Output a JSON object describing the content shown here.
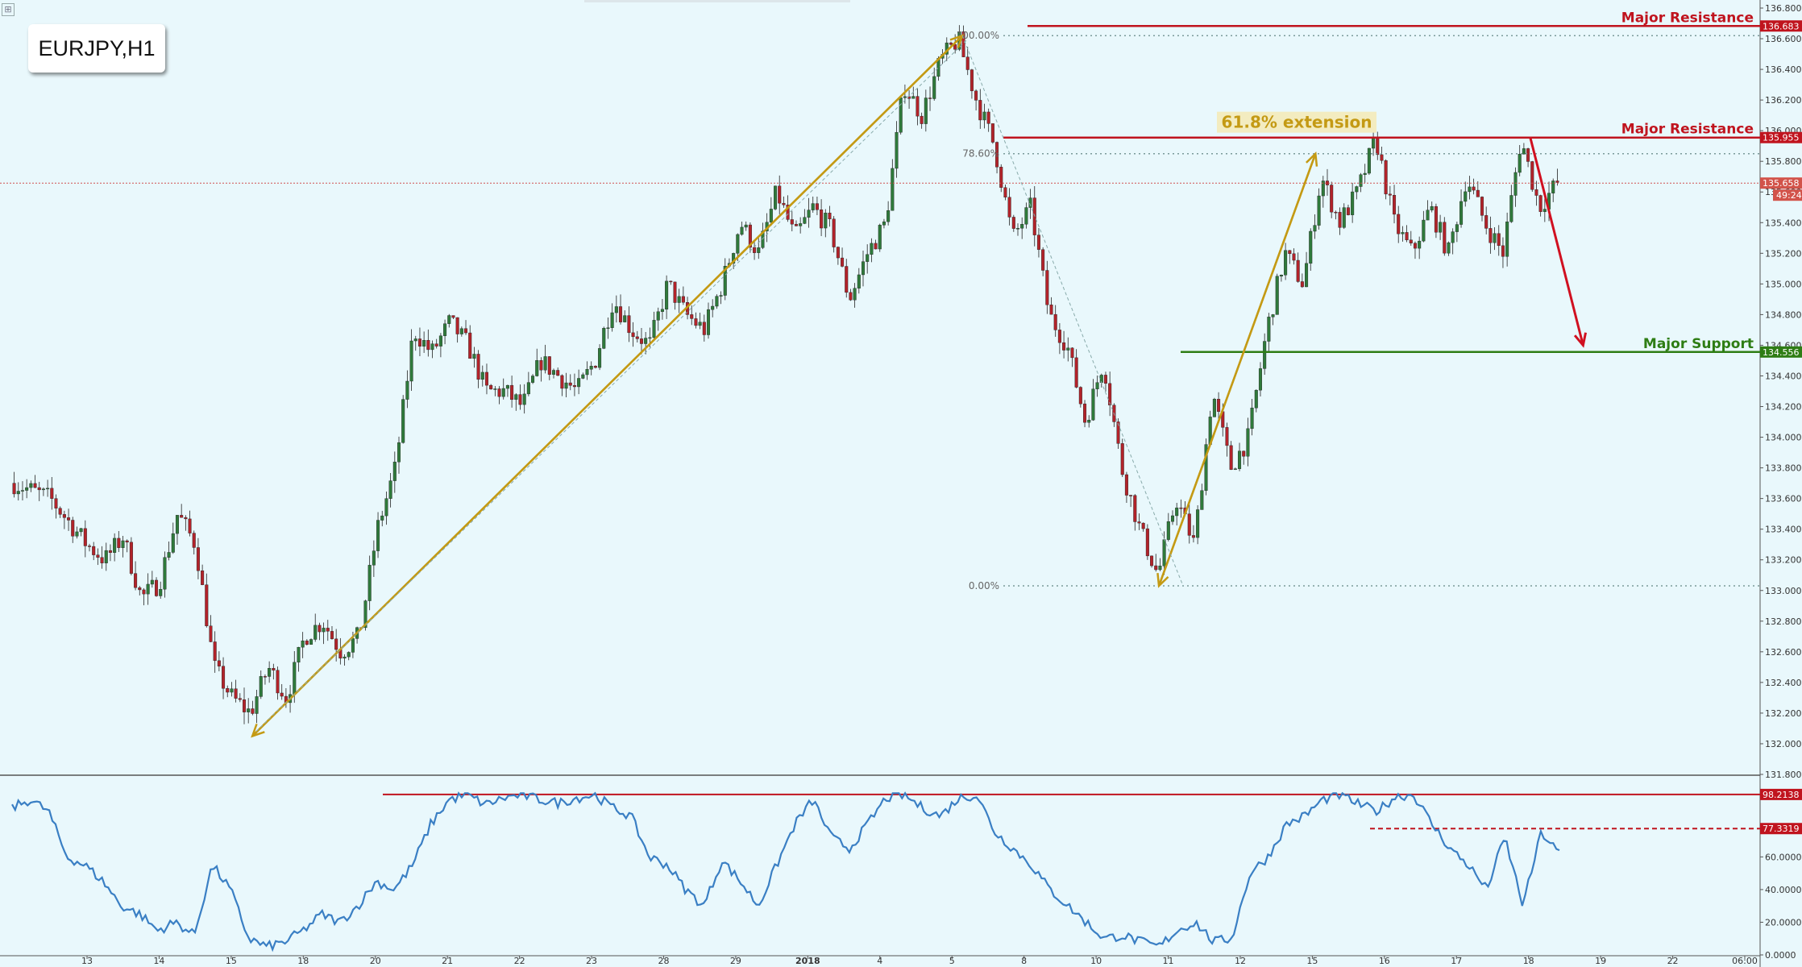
{
  "symbol": "EURJPY,H1",
  "chart_data": [
    {
      "type": "candlestick",
      "title": "EURJPY,H1",
      "price_axis": {
        "ylim": [
          131.8,
          136.8
        ],
        "ticks": [
          "136.800",
          "136.600",
          "136.400",
          "136.200",
          "136.000",
          "135.800",
          "135.600",
          "135.400",
          "135.200",
          "135.000",
          "134.800",
          "134.600",
          "134.400",
          "134.200",
          "134.000",
          "133.800",
          "133.600",
          "133.400",
          "133.200",
          "133.000",
          "132.800",
          "132.600",
          "132.400",
          "132.200",
          "132.000",
          "131.800"
        ]
      },
      "time_axis": {
        "labels": [
          "13",
          "14",
          "15",
          "18",
          "20",
          "21",
          "22",
          "23",
          "28",
          "29",
          "2018",
          "4",
          "5",
          "8",
          "10",
          "11",
          "12",
          "15",
          "16",
          "17",
          "18",
          "19",
          "22",
          "06:00"
        ]
      },
      "price_path": [
        {
          "t": 0,
          "p": 133.7
        },
        {
          "t": 1,
          "p": 133.65
        },
        {
          "t": 2,
          "p": 133.6
        },
        {
          "t": 3,
          "p": 133.45
        },
        {
          "t": 4,
          "p": 133.3
        },
        {
          "t": 5,
          "p": 133.2
        },
        {
          "t": 6,
          "p": 133.35
        },
        {
          "t": 7,
          "p": 132.95
        },
        {
          "t": 8,
          "p": 133.05
        },
        {
          "t": 9,
          "p": 133.5
        },
        {
          "t": 10,
          "p": 133.3
        },
        {
          "t": 11,
          "p": 132.5
        },
        {
          "t": 12,
          "p": 132.3
        },
        {
          "t": 13,
          "p": 132.2
        },
        {
          "t": 14,
          "p": 132.5
        },
        {
          "t": 15,
          "p": 132.3
        },
        {
          "t": 16,
          "p": 132.7
        },
        {
          "t": 17,
          "p": 132.8
        },
        {
          "t": 18,
          "p": 132.6
        },
        {
          "t": 19,
          "p": 132.7
        },
        {
          "t": 20,
          "p": 133.4
        },
        {
          "t": 21,
          "p": 133.8
        },
        {
          "t": 22,
          "p": 134.7
        },
        {
          "t": 23,
          "p": 134.55
        },
        {
          "t": 24,
          "p": 134.75
        },
        {
          "t": 25,
          "p": 134.6
        },
        {
          "t": 26,
          "p": 134.3
        },
        {
          "t": 27,
          "p": 134.3
        },
        {
          "t": 28,
          "p": 134.2
        },
        {
          "t": 29,
          "p": 134.5
        },
        {
          "t": 30,
          "p": 134.4
        },
        {
          "t": 31,
          "p": 134.3
        },
        {
          "t": 32,
          "p": 134.5
        },
        {
          "t": 33,
          "p": 134.9
        },
        {
          "t": 34,
          "p": 134.7
        },
        {
          "t": 35,
          "p": 134.6
        },
        {
          "t": 36,
          "p": 135.0
        },
        {
          "t": 37,
          "p": 134.8
        },
        {
          "t": 38,
          "p": 134.7
        },
        {
          "t": 39,
          "p": 135.0
        },
        {
          "t": 40,
          "p": 135.4
        },
        {
          "t": 41,
          "p": 135.2
        },
        {
          "t": 42,
          "p": 135.6
        },
        {
          "t": 43,
          "p": 135.3
        },
        {
          "t": 44,
          "p": 135.5
        },
        {
          "t": 45,
          "p": 135.35
        },
        {
          "t": 46,
          "p": 134.9
        },
        {
          "t": 47,
          "p": 135.2
        },
        {
          "t": 48,
          "p": 135.4
        },
        {
          "t": 49,
          "p": 136.3
        },
        {
          "t": 50,
          "p": 136.1
        },
        {
          "t": 51,
          "p": 136.45
        },
        {
          "t": 52,
          "p": 136.6
        },
        {
          "t": 53,
          "p": 136.2
        },
        {
          "t": 54,
          "p": 135.9
        },
        {
          "t": 55,
          "p": 135.3
        },
        {
          "t": 56,
          "p": 135.5
        },
        {
          "t": 57,
          "p": 134.8
        },
        {
          "t": 58,
          "p": 134.6
        },
        {
          "t": 59,
          "p": 134.1
        },
        {
          "t": 60,
          "p": 134.5
        },
        {
          "t": 61,
          "p": 133.8
        },
        {
          "t": 62,
          "p": 133.4
        },
        {
          "t": 63,
          "p": 133.1
        },
        {
          "t": 64,
          "p": 133.6
        },
        {
          "t": 65,
          "p": 133.3
        },
        {
          "t": 66,
          "p": 134.3
        },
        {
          "t": 67,
          "p": 133.8
        },
        {
          "t": 68,
          "p": 134.0
        },
        {
          "t": 69,
          "p": 134.7
        },
        {
          "t": 70,
          "p": 135.2
        },
        {
          "t": 71,
          "p": 135.0
        },
        {
          "t": 72,
          "p": 135.7
        },
        {
          "t": 73,
          "p": 135.4
        },
        {
          "t": 74,
          "p": 135.6
        },
        {
          "t": 75,
          "p": 135.95
        },
        {
          "t": 76,
          "p": 135.4
        },
        {
          "t": 77,
          "p": 135.2
        },
        {
          "t": 78,
          "p": 135.5
        },
        {
          "t": 79,
          "p": 135.2
        },
        {
          "t": 80,
          "p": 135.7
        },
        {
          "t": 81,
          "p": 135.4
        },
        {
          "t": 82,
          "p": 135.2
        },
        {
          "t": 83,
          "p": 135.95
        },
        {
          "t": 84,
          "p": 135.5
        },
        {
          "t": 85,
          "p": 135.66
        }
      ],
      "levels": [
        {
          "label": "Major Resistance",
          "price": 136.683,
          "tag": "136.683",
          "color": "#c0141e"
        },
        {
          "label": "Major Resistance",
          "price": 135.955,
          "tag": "135.955",
          "color": "#c0141e"
        },
        {
          "label": "Major Support",
          "price": 134.556,
          "tag": "134.556",
          "color": "#2e7d14"
        }
      ],
      "current_price": {
        "tag": "135.658",
        "timer": "49:24",
        "price": 135.658
      },
      "fibonacci": [
        {
          "label": "100.00%",
          "price": 136.62
        },
        {
          "label": "78.60%",
          "price": 135.85
        },
        {
          "label": "0.00%",
          "price": 133.03
        }
      ],
      "annotations": [
        {
          "text": "61.8% extension",
          "color": "#c49a14"
        }
      ]
    },
    {
      "type": "line",
      "ylim": [
        0,
        110
      ],
      "ticks": [
        "60.0000",
        "40.0000",
        "20.0000",
        "0.0000"
      ],
      "levels": [
        {
          "tag": "98.2138",
          "value": 98.2138,
          "style": "solid",
          "color": "#c0141e"
        },
        {
          "tag": "77.3319",
          "value": 77.3319,
          "style": "dashed",
          "color": "#c0141e"
        }
      ],
      "values": [
        90,
        95,
        88,
        60,
        55,
        45,
        30,
        25,
        15,
        20,
        12,
        55,
        40,
        10,
        5,
        8,
        15,
        25,
        20,
        30,
        45,
        40,
        55,
        80,
        95,
        98,
        92,
        96,
        98,
        95,
        93,
        96,
        98,
        90,
        85,
        60,
        55,
        40,
        30,
        58,
        45,
        30,
        55,
        80,
        95,
        72,
        65,
        80,
        96,
        98,
        90,
        85,
        96,
        98,
        75,
        65,
        55,
        40,
        30,
        20,
        10,
        12,
        8,
        5,
        15,
        20,
        8,
        10,
        50,
        60,
        80,
        85,
        95,
        98,
        92,
        88,
        97,
        98,
        80,
        65,
        55,
        40,
        72,
        30,
        75,
        62
      ]
    }
  ]
}
